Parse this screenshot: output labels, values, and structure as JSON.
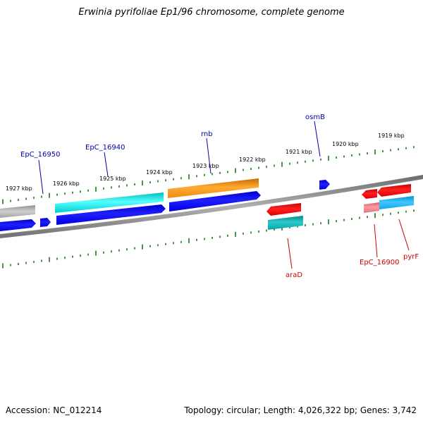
{
  "title": "Erwinia pyrifoliae Ep1/96 chromosome, complete genome",
  "footer": {
    "accession": "Accession: NC_012214",
    "summary": "Topology: circular; Length: 4,026,322 bp; Genes: 3,742"
  },
  "colors": {
    "backbone": "#808080",
    "tick": "#1a7a1a",
    "label_plus": "#0000aa",
    "label_minus": "#cc0000"
  },
  "scale_labels": [
    {
      "text": "1927 kbp",
      "kbp": 1927
    },
    {
      "text": "1926 kbp",
      "kbp": 1926
    },
    {
      "text": "1925 kbp",
      "kbp": 1925
    },
    {
      "text": "1924 kbp",
      "kbp": 1924
    },
    {
      "text": "1923 kbp",
      "kbp": 1923
    },
    {
      "text": "1922 kbp",
      "kbp": 1922
    },
    {
      "text": "1921 kbp",
      "kbp": 1921
    },
    {
      "text": "1920 kbp",
      "kbp": 1920
    },
    {
      "text": "1919 kbp",
      "kbp": 1919
    }
  ],
  "gene_labels": [
    {
      "text": "EpC_16950",
      "strand": "+",
      "name": "gene-label-epc16950"
    },
    {
      "text": "EpC_16940",
      "strand": "+",
      "name": "gene-label-epc16940"
    },
    {
      "text": "rnb",
      "strand": "+",
      "name": "gene-label-rnb"
    },
    {
      "text": "osmB",
      "strand": "+",
      "name": "gene-label-osmb"
    },
    {
      "text": "araD",
      "strand": "-",
      "name": "gene-label-arad"
    },
    {
      "text": "EpC_16900",
      "strand": "-",
      "name": "gene-label-epc16900"
    },
    {
      "text": "pyrF",
      "strand": "-",
      "name": "gene-label-pyrf"
    }
  ]
}
